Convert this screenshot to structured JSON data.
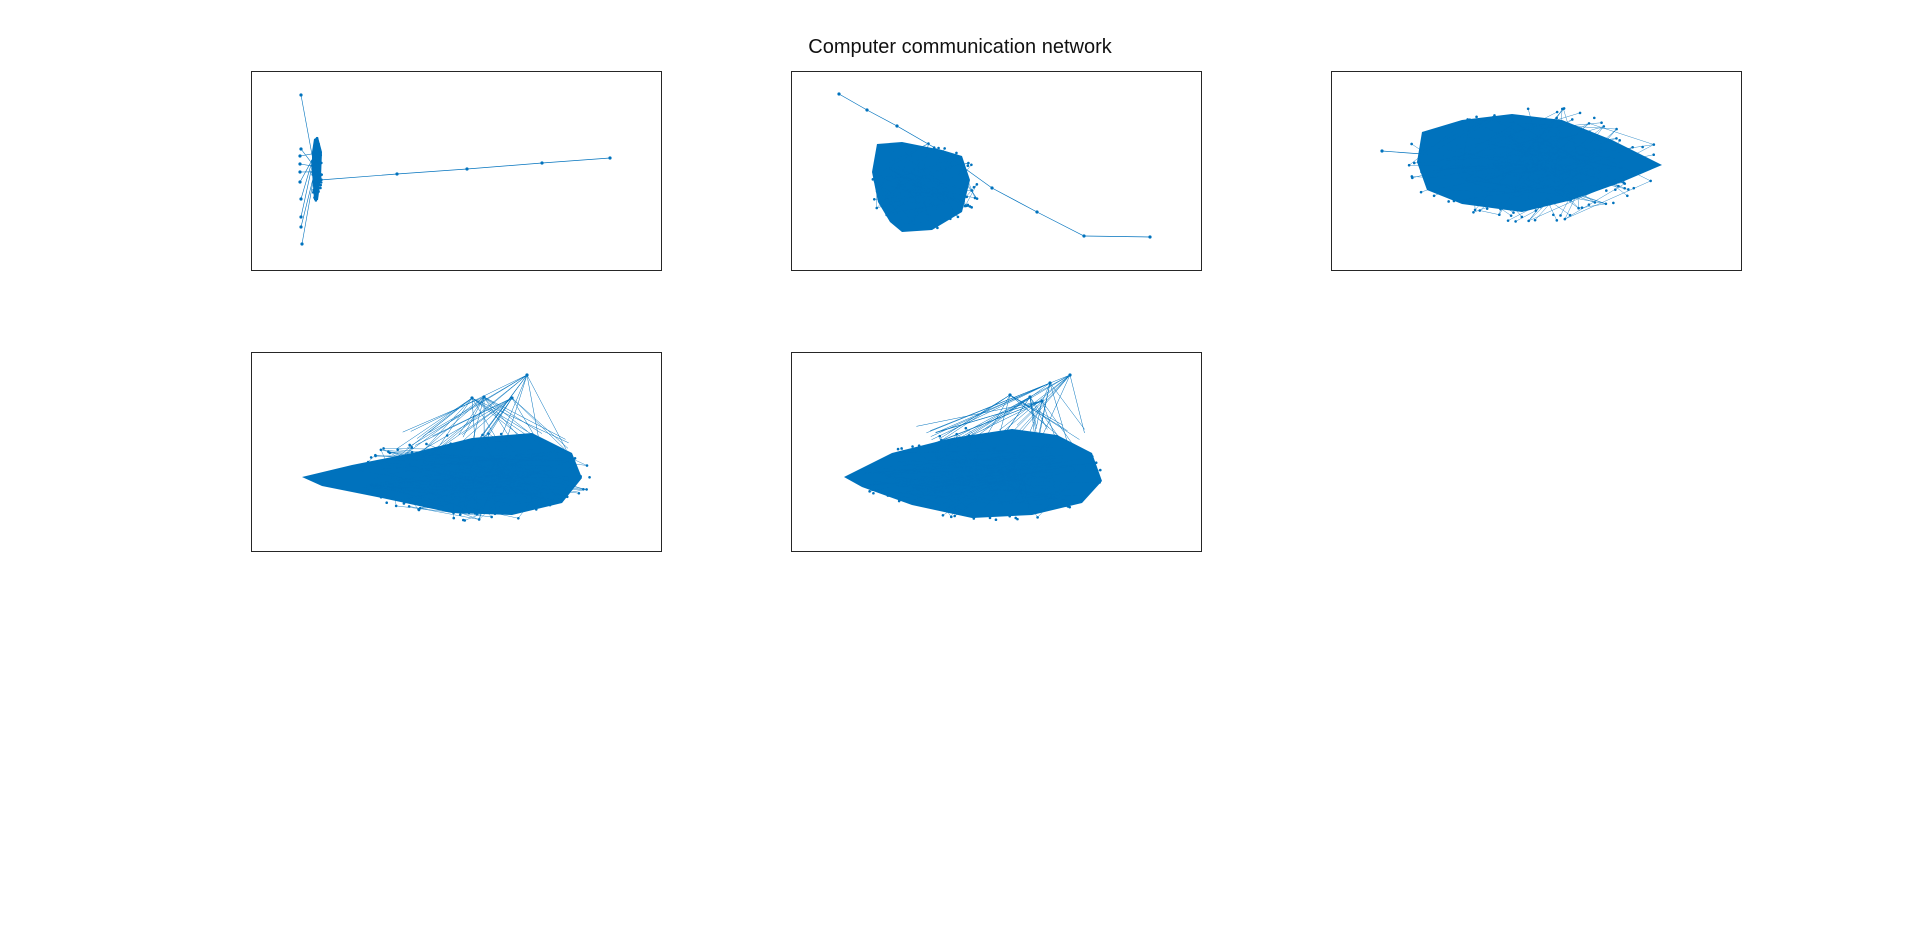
{
  "figure": {
    "title": "Computer communication network"
  },
  "style": {
    "node_color": "#0072BD",
    "edge_color": "#0072BD",
    "axes_color": "#262626",
    "background": "#FFFFFF"
  },
  "plots": [
    {
      "type": "graph-layout",
      "shape": "thin vertical core cluster with one long linear branch to the right"
    },
    {
      "type": "graph-layout",
      "shape": "dense blob with a long diagonal branch from top-left to bottom-right"
    },
    {
      "type": "graph-layout",
      "shape": "dense horizontal diamond-shaped blob"
    },
    {
      "type": "graph-layout",
      "shape": "dense blob tapering to the left with fan of edges above"
    },
    {
      "type": "graph-layout",
      "shape": "dense blob tapering to the left with fan of edges above"
    }
  ]
}
